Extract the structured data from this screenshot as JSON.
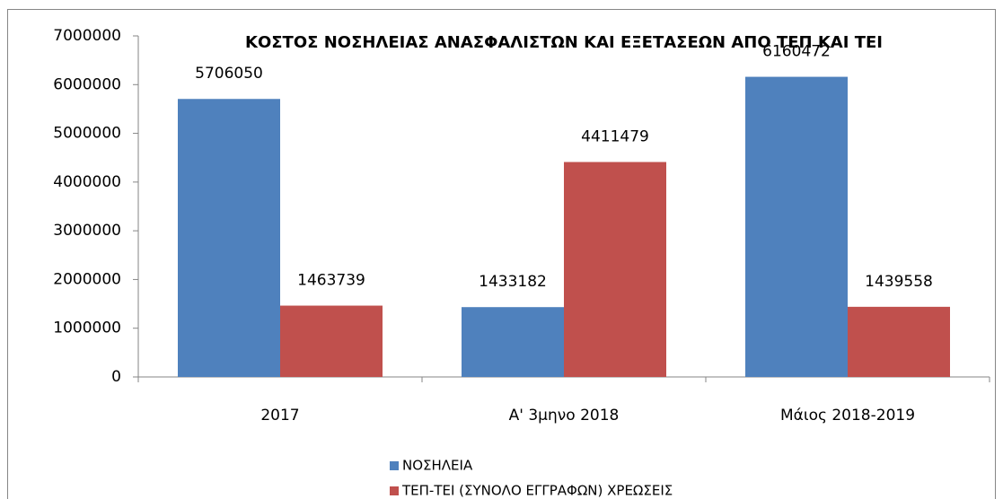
{
  "chart_data": {
    "type": "bar",
    "title": "ΚΟΣΤΟΣ ΝΟΣΗΛΕΙΑΣ ΑΝΑΣΦΑΛΙΣΤΩΝ ΚΑΙ ΕΞΕΤΑΣΕΩΝ ΑΠΟ ΤΕΠ ΚΑΙ ΤΕΙ",
    "categories": [
      "2017",
      "Α' 3μηνο 2018",
      "Μάιος 2018-2019"
    ],
    "series": [
      {
        "name": "ΝΟΣΗΛΕΙΑ",
        "color": "#4f81bd",
        "values": [
          5706050,
          1433182,
          6160472
        ]
      },
      {
        "name": "ΤΕΠ-ΤΕΙ (ΣΥΝΟΛΟ ΕΓΓΡΑΦΩΝ) ΧΡΕΩΣΕΙΣ",
        "color": "#c0504d",
        "values": [
          1463739,
          4411479,
          1439558
        ]
      }
    ],
    "ylim": [
      0,
      7000000
    ],
    "yticks": [
      0,
      1000000,
      2000000,
      3000000,
      4000000,
      5000000,
      6000000,
      7000000
    ],
    "grid": false,
    "legend": "bottom"
  }
}
